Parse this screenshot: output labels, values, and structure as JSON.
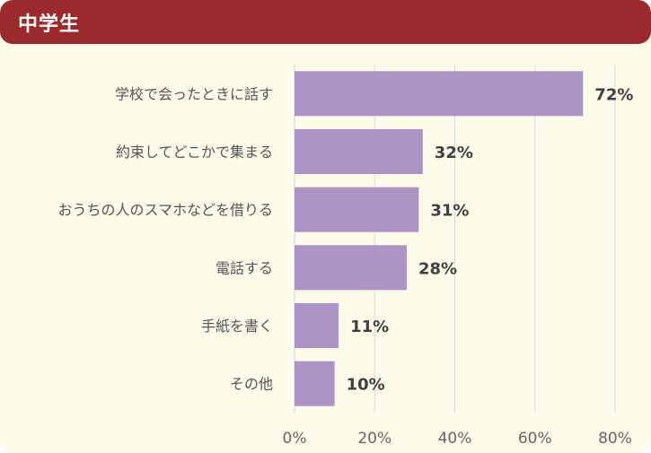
{
  "header": {
    "title": "中学生"
  },
  "colors": {
    "header_bg": "#9b2a2c",
    "panel_bg": "#fdfbea",
    "bar": "#ab93c5",
    "grid": "#d9d9d9"
  },
  "chart_data": {
    "type": "bar",
    "orientation": "horizontal",
    "categories": [
      "学校で会ったときに話す",
      "約束してどこかで集まる",
      "おうちの人のスマホなどを借りる",
      "電話する",
      "手紙を書く",
      "その他"
    ],
    "values": [
      72,
      32,
      31,
      28,
      11,
      10
    ],
    "value_labels": [
      "72%",
      "32%",
      "31%",
      "28%",
      "11%",
      "10%"
    ],
    "xlim": [
      0,
      80
    ],
    "xticks": [
      0,
      20,
      40,
      60,
      80
    ],
    "xtick_labels": [
      "0%",
      "20%",
      "40%",
      "60%",
      "80%"
    ],
    "grid": true,
    "legend": false
  }
}
